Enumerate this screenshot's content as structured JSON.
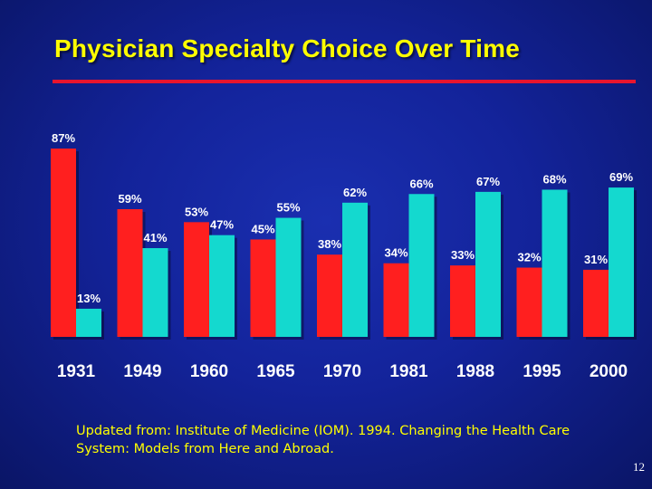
{
  "slide": {
    "title": "Physician Specialty Choice Over Time",
    "footnote": "Updated from: Institute of Medicine (IOM). 1994. Changing the Health Care System: Models from Here and Abroad.",
    "page_number": "12"
  },
  "colors": {
    "title": "#ffff00",
    "rule": "#e8152e",
    "series_1": "#ff1f1f",
    "series_2": "#14d9cf",
    "text": "#ffffff"
  },
  "chart_data": {
    "type": "bar",
    "title": "",
    "xlabel": "",
    "ylabel": "",
    "ylim": [
      0,
      100
    ],
    "grid": false,
    "legend": "none",
    "categories": [
      "1931",
      "1949",
      "1960",
      "1965",
      "1970",
      "1981",
      "1988",
      "1995",
      "2000"
    ],
    "series": [
      {
        "values": [
          87,
          59,
          53,
          45,
          38,
          34,
          33,
          32,
          31
        ],
        "labels": [
          "87%",
          "59%",
          "53%",
          "45%",
          "38%",
          "34%",
          "33%",
          "32%",
          "31%"
        ]
      },
      {
        "values": [
          13,
          41,
          47,
          55,
          62,
          66,
          67,
          68,
          69
        ],
        "labels": [
          "13%",
          "41%",
          "47%",
          "55%",
          "62%",
          "66%",
          "67%",
          "68%",
          "69%"
        ]
      }
    ]
  }
}
